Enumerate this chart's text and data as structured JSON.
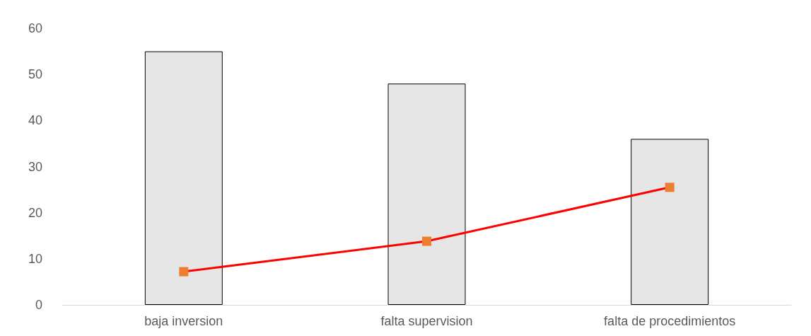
{
  "chart_data": {
    "type": "bar",
    "categories": [
      "baja inversion",
      "falta supervision",
      "falta de procedimientos"
    ],
    "series": [
      {
        "color": "#e6e6e6",
        "values": [
          55,
          48,
          36
        ]
      },
      {
        "type": "line",
        "color": "#ff0000",
        "values": [
          7.2,
          13.8,
          25.5
        ]
      }
    ],
    "ylim": [
      0,
      60
    ],
    "yticks": [
      0,
      10,
      20,
      30,
      40,
      50,
      60
    ],
    "grid": false,
    "marker": "square",
    "line_style": "solid"
  }
}
